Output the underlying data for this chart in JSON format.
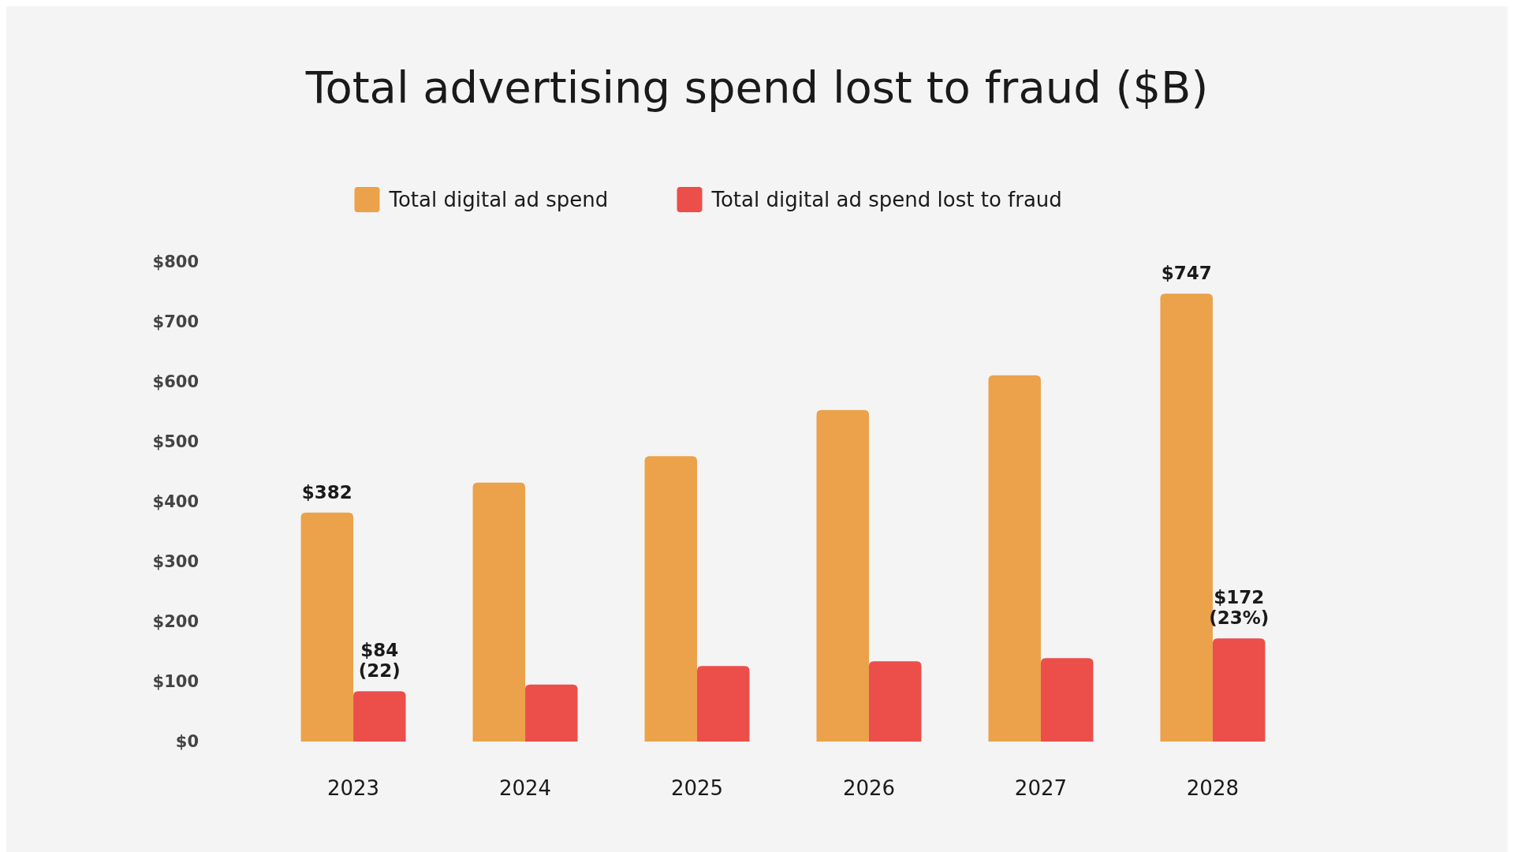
{
  "chart_data": {
    "type": "bar",
    "title": "Total advertising spend lost to fraud ($B)",
    "categories": [
      "2023",
      "2024",
      "2025",
      "2026",
      "2027",
      "2028"
    ],
    "series": [
      {
        "name": "Total digital ad spend",
        "color": "#eba24a",
        "values": [
          382,
          432,
          476,
          553,
          611,
          747
        ],
        "value_labels": [
          "$382",
          null,
          null,
          null,
          null,
          "$747"
        ]
      },
      {
        "name": "Total digital ad spend lost to fraud",
        "color": "#ec4e4a",
        "values": [
          84,
          95,
          126,
          134,
          139,
          172
        ],
        "value_labels": [
          "$84\n(22)",
          null,
          null,
          null,
          null,
          "$172\n(23%)"
        ]
      }
    ],
    "ylim": [
      0,
      800
    ],
    "yticks": [
      {
        "value": 0,
        "label": "$0"
      },
      {
        "value": 100,
        "label": "$100"
      },
      {
        "value": 200,
        "label": "$200"
      },
      {
        "value": 300,
        "label": "$300"
      },
      {
        "value": 400,
        "label": "$400"
      },
      {
        "value": 500,
        "label": "$500"
      },
      {
        "value": 600,
        "label": "$600"
      },
      {
        "value": 700,
        "label": "$700"
      },
      {
        "value": 800,
        "label": "$800"
      }
    ],
    "legend": "top"
  }
}
